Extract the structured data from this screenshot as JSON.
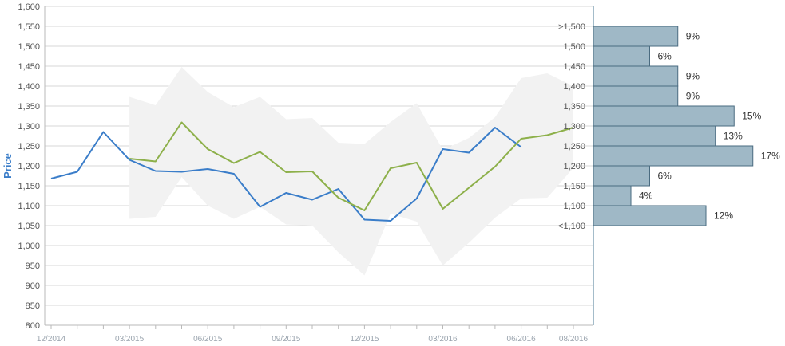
{
  "chart_data": {
    "type": "line",
    "ylabel": "Price",
    "ylim": [
      800,
      1600
    ],
    "y_ticks": [
      "800",
      "850",
      "900",
      "950",
      "1,000",
      "1,050",
      "1,100",
      "1,150",
      "1,200",
      "1,250",
      "1,300",
      "1,350",
      "1,400",
      "1,450",
      "1,500",
      "1,550",
      "1,600"
    ],
    "x_tick_labels": [
      "12/2014",
      "03/2015",
      "06/2015",
      "09/2015",
      "12/2015",
      "03/2016",
      "06/2016",
      "08/2016"
    ],
    "x": [
      "12/2014",
      "01/2015",
      "02/2015",
      "03/2015",
      "04/2015",
      "05/2015",
      "06/2015",
      "07/2015",
      "08/2015",
      "09/2015",
      "10/2015",
      "11/2015",
      "12/2015",
      "01/2016",
      "02/2016",
      "03/2016",
      "04/2016",
      "05/2016",
      "06/2016",
      "07/2016",
      "08/2016"
    ],
    "colors": {
      "price": "#3a7dc9",
      "forecast": "#8db04a",
      "band": "#f2f2f2",
      "hist_fill": "#9fb8c6",
      "hist_stroke": "#4a6b80",
      "axis": "#4a7a94",
      "grid": "#d7d7d7"
    },
    "series": [
      {
        "values": [
          1168,
          1185,
          1285,
          1215,
          1187,
          1185,
          1192,
          1180,
          1097,
          1132,
          1115,
          1142,
          1065,
          1062,
          1118,
          1242,
          1233,
          1296,
          1247,
          null,
          null
        ]
      },
      {
        "values": [
          null,
          null,
          null,
          1218,
          1211,
          1309,
          1242,
          1207,
          1235,
          1184,
          1186,
          1120,
          1088,
          1194,
          1208,
          1092,
          1145,
          1198,
          1268,
          1277,
          1296
        ]
      }
    ],
    "band_upper": [
      null,
      null,
      null,
      1373,
      1352,
      1448,
      1385,
      1347,
      1373,
      1317,
      1320,
      1258,
      1255,
      1310,
      1357,
      1240,
      1270,
      1322,
      1420,
      1432,
      1400
    ],
    "band_lower": [
      null,
      null,
      null,
      1067,
      1072,
      1172,
      1100,
      1067,
      1097,
      1053,
      1050,
      983,
      925,
      1080,
      1060,
      950,
      1007,
      1070,
      1118,
      1120,
      1195
    ],
    "histogram": [
      {
        "label": ">1,500",
        "low": 1500,
        "high": 1550,
        "percent": 9,
        "text": "9%"
      },
      {
        "label": "1,500",
        "low": 1450,
        "high": 1500,
        "percent": 6,
        "text": "6%"
      },
      {
        "label": "1,450",
        "low": 1400,
        "high": 1450,
        "percent": 9,
        "text": "9%"
      },
      {
        "label": "1,400",
        "low": 1350,
        "high": 1400,
        "percent": 9,
        "text": "9%"
      },
      {
        "label": "1,350",
        "low": 1300,
        "high": 1350,
        "percent": 15,
        "text": "15%"
      },
      {
        "label": "1,300",
        "low": 1250,
        "high": 1300,
        "percent": 13,
        "text": "13%"
      },
      {
        "label": "1,250",
        "low": 1200,
        "high": 1250,
        "percent": 17,
        "text": "17%"
      },
      {
        "label": "1,200",
        "low": 1150,
        "high": 1200,
        "percent": 6,
        "text": "6%"
      },
      {
        "label": "1,150",
        "low": 1100,
        "high": 1150,
        "percent": 4,
        "text": "4%"
      },
      {
        "label": "1,100",
        "low": 1050,
        "high": 1100,
        "percent": 12,
        "text": "12%"
      }
    ],
    "histogram_bottom_label": "<1,100"
  }
}
